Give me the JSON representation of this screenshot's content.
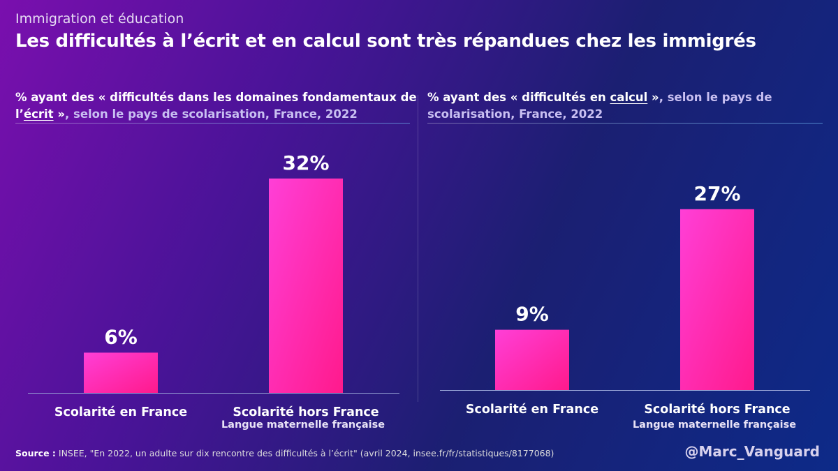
{
  "header": {
    "kicker": "Immigration et éducation",
    "title": "Les difficultés à l’écrit et en calcul sont très répandues chez les immigrés"
  },
  "colors": {
    "bar_top": "#ff3fd7",
    "bar_bottom": "#ff1a8c",
    "axis": "#9aa7d8"
  },
  "chart_data": [
    {
      "type": "bar",
      "title_parts": [
        "% ayant des « difficultés dans les domaines fondamentaux de l’",
        "écrit",
        " »",
        ", selon le pays de scolarisation, France, 2022"
      ],
      "categories": [
        "Scolarité en France",
        "Scolarité hors France"
      ],
      "category_sublabels": [
        "",
        "Langue maternelle française"
      ],
      "values": [
        6,
        32
      ],
      "value_labels": [
        "6%",
        "32%"
      ],
      "ylim": [
        0,
        35
      ],
      "grid": false
    },
    {
      "type": "bar",
      "title_parts": [
        "% ayant des « difficultés en ",
        "calcul",
        " »",
        ", selon le pays de scolarisation, France, 2022"
      ],
      "categories": [
        "Scolarité en France",
        "Scolarité hors France"
      ],
      "category_sublabels": [
        "",
        "Langue maternelle française"
      ],
      "values": [
        9,
        27
      ],
      "value_labels": [
        "9%",
        "27%"
      ],
      "ylim": [
        0,
        35
      ],
      "grid": false
    }
  ],
  "footer": {
    "source_label": "Source :",
    "source_text": " INSEE, \"En 2022, un adulte sur dix rencontre des difficultés à l’écrit\" (avril 2024, insee.fr/fr/statistiques/8177068)",
    "handle": "@Marc_Vanguard"
  }
}
